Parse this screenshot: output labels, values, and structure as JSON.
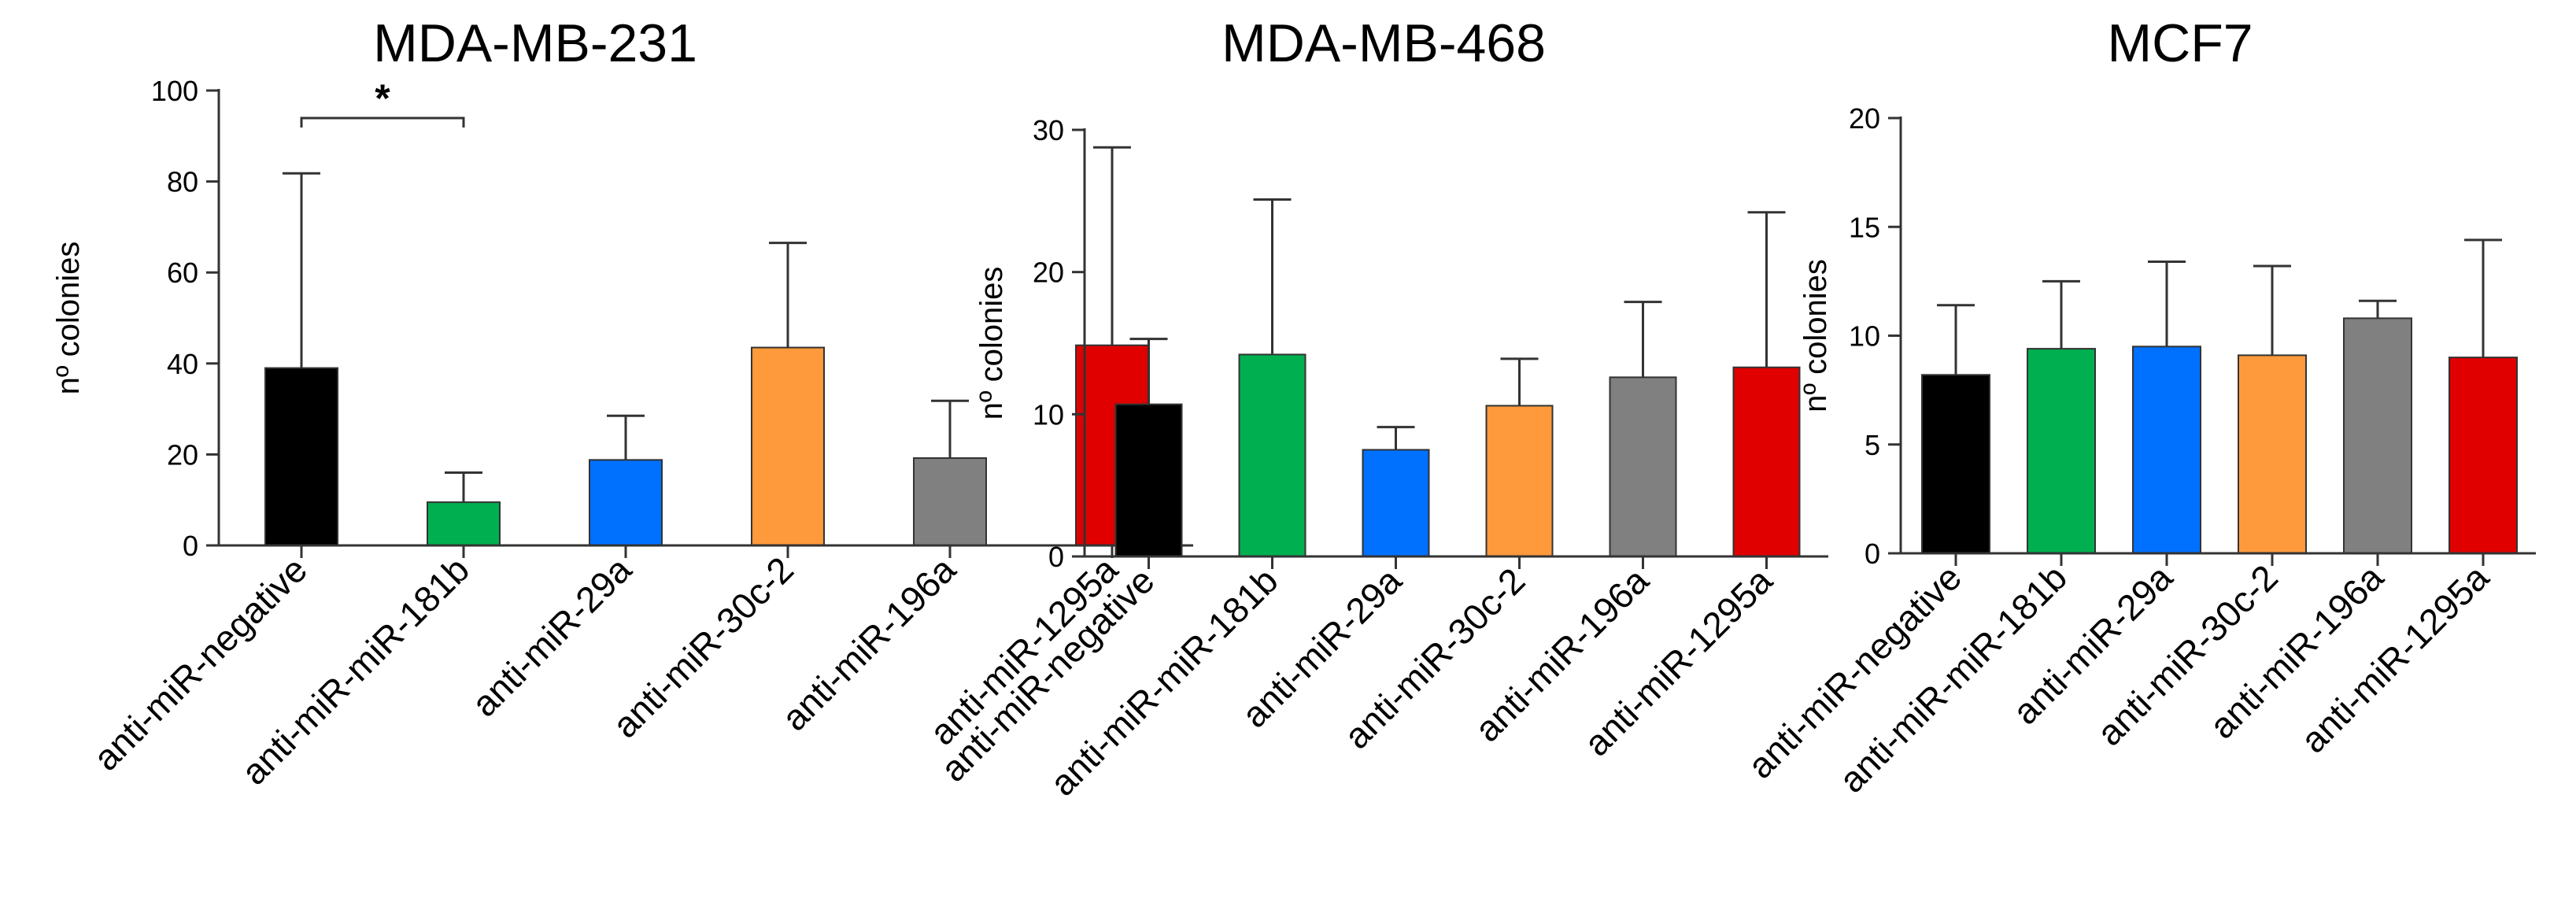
{
  "chart_data": [
    {
      "type": "bar",
      "title": "MDA-MB-231",
      "xlabel": "",
      "ylabel": "nº colonies",
      "ylim": [
        0,
        100
      ],
      "yticks": [
        0,
        20,
        40,
        60,
        80,
        100
      ],
      "categories": [
        "anti-miR-negative",
        "anti-miR-miR-181b",
        "anti-miR-29a",
        "anti-miR-30c-2",
        "anti-miR-196a",
        "anti-miR-1295a"
      ],
      "values": [
        39,
        9.5,
        18.8,
        43.5,
        19.2,
        44
      ],
      "error_upper": [
        81.8,
        16,
        28.5,
        66.5,
        31.8,
        87.5
      ],
      "colors": [
        "#000000",
        "#00b050",
        "#0070ff",
        "#ff9a3c",
        "#808080",
        "#e00000"
      ],
      "annotations": [
        {
          "text": "*",
          "from": 0,
          "to": 1
        }
      ]
    },
    {
      "type": "bar",
      "title": "MDA-MB-468",
      "xlabel": "",
      "ylabel": "nº colonies",
      "ylim": [
        0,
        30
      ],
      "yticks": [
        0,
        10,
        20,
        30
      ],
      "categories": [
        "anti-miR-negative",
        "anti-miR-miR-181b",
        "anti-miR-29a",
        "anti-miR-30c-2",
        "anti-miR-196a",
        "anti-miR-1295a"
      ],
      "values": [
        10.7,
        14.2,
        7.5,
        10.6,
        12.6,
        13.3
      ],
      "error_upper": [
        15.3,
        25.1,
        9.1,
        13.9,
        17.9,
        24.2
      ],
      "colors": [
        "#000000",
        "#00b050",
        "#0070ff",
        "#ff9a3c",
        "#808080",
        "#e00000"
      ],
      "annotations": []
    },
    {
      "type": "bar",
      "title": "MCF7",
      "xlabel": "",
      "ylabel": "nº colonies",
      "ylim": [
        0,
        20
      ],
      "yticks": [
        0,
        5,
        10,
        15,
        20
      ],
      "categories": [
        "anti-miR-negative",
        "anti-miR-miR-181b",
        "anti-miR-29a",
        "anti-miR-30c-2",
        "anti-miR-196a",
        "anti-miR-1295a"
      ],
      "values": [
        8.2,
        9.4,
        9.5,
        9.1,
        10.8,
        9
      ],
      "error_upper": [
        11.4,
        12.5,
        13.4,
        13.2,
        11.6,
        14.4
      ],
      "colors": [
        "#000000",
        "#00b050",
        "#0070ff",
        "#ff9a3c",
        "#808080",
        "#e00000"
      ],
      "annotations": []
    }
  ]
}
